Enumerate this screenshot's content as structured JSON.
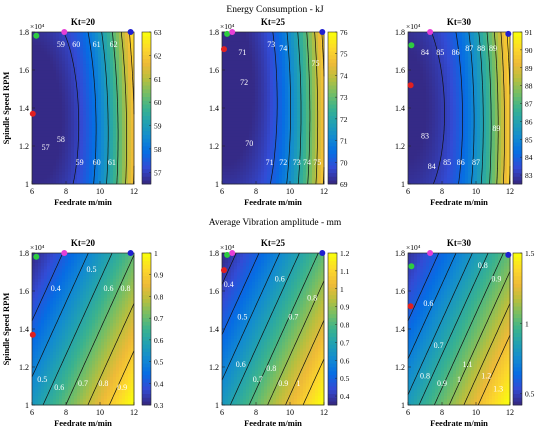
{
  "row_titles": [
    "Energy Consumption - kJ",
    "Average Vibration amplitude - mm"
  ],
  "exponent_label": "×10⁴",
  "chart_data": [
    {
      "type": "heatmap",
      "row": 0,
      "col": 0,
      "title": "Kt=20",
      "xlabel": "Feedrate m/min",
      "ylabel": "Spindle Speed RPM",
      "xlim": [
        6,
        12
      ],
      "ylim": [
        1,
        1.8
      ],
      "xticks": [
        "6",
        "8",
        "10",
        "12"
      ],
      "yticks": [
        "1",
        "1.2",
        "1.4",
        "1.6",
        "1.8"
      ],
      "colorbar": {
        "min": 56.5,
        "max": 63,
        "ticks": [
          "57",
          "58",
          "59",
          "60",
          "61",
          "62",
          "63"
        ]
      },
      "levels": [
        57,
        58,
        59,
        60,
        61,
        62
      ],
      "field": {
        "kind": "energy",
        "a": 56.2,
        "b": 7.0,
        "xc": 6.6,
        "yc": 1.38,
        "kx": 4.0,
        "ky": 1.6,
        "sk": 0.5,
        "vmin": 56.5,
        "vmax": 63
      },
      "contour_labels": [
        {
          "text": "59",
          "x": 7.7,
          "y": 1.72
        },
        {
          "text": "60",
          "x": 8.6,
          "y": 1.72
        },
        {
          "text": "61",
          "x": 9.8,
          "y": 1.72
        },
        {
          "text": "62",
          "x": 10.8,
          "y": 1.72
        },
        {
          "text": "57",
          "x": 6.8,
          "y": 1.18
        },
        {
          "text": "58",
          "x": 7.7,
          "y": 1.22
        },
        {
          "text": "59",
          "x": 8.8,
          "y": 1.1
        },
        {
          "text": "60",
          "x": 9.8,
          "y": 1.1
        },
        {
          "text": "61",
          "x": 10.7,
          "y": 1.1
        }
      ],
      "markers": [
        {
          "color": "#2ecc40",
          "x": 6.25,
          "y": 1.78
        },
        {
          "color": "#e63fd6",
          "x": 7.9,
          "y": 1.8
        },
        {
          "color": "#1f1fd0",
          "x": 11.8,
          "y": 1.8
        },
        {
          "color": "#e02020",
          "x": 6.05,
          "y": 1.37
        }
      ]
    },
    {
      "type": "heatmap",
      "row": 0,
      "col": 1,
      "title": "Kt=25",
      "xlabel": "Feedrate m/min",
      "ylabel": "",
      "xlim": [
        6,
        12
      ],
      "ylim": [
        1,
        1.8
      ],
      "xticks": [
        "6",
        "8",
        "10",
        "12"
      ],
      "yticks": [
        "1",
        "1.2",
        "1.4",
        "1.6",
        "1.8"
      ],
      "colorbar": {
        "min": 69,
        "max": 76,
        "ticks": [
          "69",
          "70",
          "71",
          "72",
          "73",
          "74",
          "75",
          "76"
        ]
      },
      "levels": [
        70,
        71,
        72,
        73,
        74,
        75
      ],
      "field": {
        "kind": "energy",
        "a": 68.6,
        "b": 7.5,
        "xc": 6.4,
        "yc": 1.55,
        "kx": 3.9,
        "ky": 1.4,
        "sk": 0.7,
        "vmin": 69,
        "vmax": 76
      },
      "contour_labels": [
        {
          "text": "71",
          "x": 7.2,
          "y": 1.68
        },
        {
          "text": "73",
          "x": 8.9,
          "y": 1.72
        },
        {
          "text": "74",
          "x": 9.6,
          "y": 1.7
        },
        {
          "text": "72",
          "x": 7.3,
          "y": 1.52
        },
        {
          "text": "70",
          "x": 7.6,
          "y": 1.2
        },
        {
          "text": "71",
          "x": 8.8,
          "y": 1.1
        },
        {
          "text": "72",
          "x": 9.6,
          "y": 1.1
        },
        {
          "text": "73",
          "x": 10.4,
          "y": 1.1
        },
        {
          "text": "74",
          "x": 11.0,
          "y": 1.1
        },
        {
          "text": "75",
          "x": 11.6,
          "y": 1.1
        },
        {
          "text": "75",
          "x": 11.5,
          "y": 1.62
        }
      ],
      "markers": [
        {
          "color": "#2ecc40",
          "x": 6.3,
          "y": 1.79
        },
        {
          "color": "#e63fd6",
          "x": 6.6,
          "y": 1.8
        },
        {
          "color": "#1f1fd0",
          "x": 11.9,
          "y": 1.8
        },
        {
          "color": "#e02020",
          "x": 6.12,
          "y": 1.71
        }
      ]
    },
    {
      "type": "heatmap",
      "row": 0,
      "col": 2,
      "title": "Kt=30",
      "xlabel": "Feedrate m/min",
      "ylabel": "",
      "xlim": [
        6,
        12
      ],
      "ylim": [
        1,
        1.8
      ],
      "xticks": [
        "6",
        "8",
        "10",
        "12"
      ],
      "yticks": [
        "1",
        "1.2",
        "1.4",
        "1.6",
        "1.8"
      ],
      "colorbar": {
        "min": 82.5,
        "max": 91,
        "ticks": [
          "83",
          "84",
          "85",
          "86",
          "87",
          "88",
          "89",
          "90",
          "91"
        ]
      },
      "levels": [
        83,
        84,
        85,
        86,
        87,
        88,
        89,
        90
      ],
      "field": {
        "kind": "energy",
        "a": 82.3,
        "b": 8.7,
        "xc": 6.3,
        "yc": 1.42,
        "kx": 4.0,
        "ky": 1.4,
        "sk": 0.5,
        "vmin": 82.5,
        "vmax": 91
      },
      "contour_labels": [
        {
          "text": "84",
          "x": 7.0,
          "y": 1.68
        },
        {
          "text": "85",
          "x": 7.9,
          "y": 1.68
        },
        {
          "text": "86",
          "x": 8.8,
          "y": 1.68
        },
        {
          "text": "87",
          "x": 9.6,
          "y": 1.7
        },
        {
          "text": "88",
          "x": 10.3,
          "y": 1.7
        },
        {
          "text": "89",
          "x": 11.0,
          "y": 1.7
        },
        {
          "text": "83",
          "x": 7.0,
          "y": 1.24
        },
        {
          "text": "84",
          "x": 7.4,
          "y": 1.08
        },
        {
          "text": "85",
          "x": 8.3,
          "y": 1.1
        },
        {
          "text": "86",
          "x": 9.1,
          "y": 1.1
        },
        {
          "text": "87",
          "x": 10.0,
          "y": 1.1
        },
        {
          "text": "89",
          "x": 11.2,
          "y": 1.28
        }
      ],
      "markers": [
        {
          "color": "#2ecc40",
          "x": 6.2,
          "y": 1.73
        },
        {
          "color": "#e63fd6",
          "x": 7.3,
          "y": 1.8
        },
        {
          "color": "#1f1fd0",
          "x": 11.9,
          "y": 1.79
        },
        {
          "color": "#e02020",
          "x": 6.15,
          "y": 1.52
        }
      ]
    },
    {
      "type": "heatmap",
      "row": 1,
      "col": 0,
      "title": "Kt=20",
      "xlabel": "Feedrate m/min",
      "ylabel": "Spindle Speed RPM",
      "xlim": [
        6,
        12
      ],
      "ylim": [
        1,
        1.8
      ],
      "xticks": [
        "6",
        "8",
        "10",
        "12"
      ],
      "yticks": [
        "1",
        "1.2",
        "1.4",
        "1.6",
        "1.8"
      ],
      "colorbar": {
        "min": 0.3,
        "max": 1.0,
        "ticks": [
          "0.3",
          "0.4",
          "0.5",
          "0.6",
          "0.7",
          "0.8",
          "0.9",
          "1"
        ]
      },
      "levels": [
        0.4,
        0.5,
        0.6,
        0.7,
        0.8,
        0.9
      ],
      "field": {
        "kind": "vib",
        "base": 0.3,
        "amp": 0.7,
        "vmin": 0.3,
        "vmax": 1.0
      },
      "contour_labels": [
        {
          "text": "0.4",
          "x": 7.4,
          "y": 1.6
        },
        {
          "text": "0.5",
          "x": 9.5,
          "y": 1.7
        },
        {
          "text": "0.6",
          "x": 10.5,
          "y": 1.6
        },
        {
          "text": "0.8",
          "x": 11.5,
          "y": 1.6
        },
        {
          "text": "0.5",
          "x": 6.6,
          "y": 1.12
        },
        {
          "text": "0.6",
          "x": 7.6,
          "y": 1.08
        },
        {
          "text": "0.7",
          "x": 9.0,
          "y": 1.1
        },
        {
          "text": "0.8",
          "x": 10.2,
          "y": 1.1
        },
        {
          "text": "0.9",
          "x": 11.3,
          "y": 1.08
        }
      ],
      "markers": [
        {
          "color": "#2ecc40",
          "x": 6.25,
          "y": 1.78
        },
        {
          "color": "#e63fd6",
          "x": 7.9,
          "y": 1.8
        },
        {
          "color": "#1f1fd0",
          "x": 11.8,
          "y": 1.8
        },
        {
          "color": "#e02020",
          "x": 6.05,
          "y": 1.37
        }
      ]
    },
    {
      "type": "heatmap",
      "row": 1,
      "col": 1,
      "title": "Kt=25",
      "xlabel": "Feedrate m/min",
      "ylabel": "",
      "xlim": [
        6,
        12
      ],
      "ylim": [
        1,
        1.8
      ],
      "xticks": [
        "6",
        "8",
        "10",
        "12"
      ],
      "yticks": [
        "1",
        "1.2",
        "1.4",
        "1.6",
        "1.8"
      ],
      "colorbar": {
        "min": 0.35,
        "max": 1.2,
        "ticks": [
          "0.4",
          "0.5",
          "0.6",
          "0.7",
          "0.8",
          "0.9",
          "1",
          "1.1",
          "1.2"
        ]
      },
      "levels": [
        0.4,
        0.5,
        0.6,
        0.7,
        0.8,
        0.9,
        1.0,
        1.1
      ],
      "field": {
        "kind": "vib",
        "base": 0.35,
        "amp": 0.85,
        "vmin": 0.35,
        "vmax": 1.2
      },
      "contour_labels": [
        {
          "text": "0.4",
          "x": 6.4,
          "y": 1.62
        },
        {
          "text": "0.6",
          "x": 9.4,
          "y": 1.65
        },
        {
          "text": "0.5",
          "x": 7.2,
          "y": 1.45
        },
        {
          "text": "0.7",
          "x": 10.2,
          "y": 1.45
        },
        {
          "text": "0.8",
          "x": 11.3,
          "y": 1.55
        },
        {
          "text": "0.6",
          "x": 7.1,
          "y": 1.2
        },
        {
          "text": "0.7",
          "x": 8.1,
          "y": 1.12
        },
        {
          "text": "0.8",
          "x": 8.9,
          "y": 1.18
        },
        {
          "text": "0.9",
          "x": 9.6,
          "y": 1.1
        },
        {
          "text": "1",
          "x": 10.5,
          "y": 1.1
        }
      ],
      "markers": [
        {
          "color": "#2ecc40",
          "x": 6.3,
          "y": 1.79
        },
        {
          "color": "#e63fd6",
          "x": 6.6,
          "y": 1.8
        },
        {
          "color": "#1f1fd0",
          "x": 11.9,
          "y": 1.8
        },
        {
          "color": "#e02020",
          "x": 6.12,
          "y": 1.71
        }
      ]
    },
    {
      "type": "heatmap",
      "row": 1,
      "col": 2,
      "title": "Kt=30",
      "xlabel": "Feedrate m/min",
      "ylabel": "",
      "xlim": [
        6,
        12
      ],
      "ylim": [
        1,
        1.8
      ],
      "xticks": [
        "6",
        "8",
        "10",
        "12"
      ],
      "yticks": [
        "1",
        "1.2",
        "1.4",
        "1.6",
        "1.8"
      ],
      "colorbar": {
        "min": 0.42,
        "max": 1.5,
        "ticks": [
          "0.5",
          "1",
          "1.5"
        ]
      },
      "levels": [
        0.6,
        0.7,
        0.8,
        0.9,
        1.0,
        1.1,
        1.2,
        1.3
      ],
      "field": {
        "kind": "vib",
        "base": 0.45,
        "amp": 1.05,
        "vmin": 0.42,
        "vmax": 1.5
      },
      "contour_labels": [
        {
          "text": "0.8",
          "x": 10.4,
          "y": 1.72
        },
        {
          "text": "0.9",
          "x": 11.2,
          "y": 1.65
        },
        {
          "text": "0.6",
          "x": 7.2,
          "y": 1.52
        },
        {
          "text": "0.7",
          "x": 7.8,
          "y": 1.3
        },
        {
          "text": "0.8",
          "x": 7.0,
          "y": 1.14
        },
        {
          "text": "0.9",
          "x": 8.0,
          "y": 1.1
        },
        {
          "text": "1",
          "x": 9.0,
          "y": 1.12
        },
        {
          "text": "1.1",
          "x": 9.5,
          "y": 1.2
        },
        {
          "text": "1.2",
          "x": 10.6,
          "y": 1.14
        },
        {
          "text": "1.3",
          "x": 11.3,
          "y": 1.07
        }
      ],
      "markers": [
        {
          "color": "#2ecc40",
          "x": 6.2,
          "y": 1.73
        },
        {
          "color": "#e63fd6",
          "x": 7.3,
          "y": 1.8
        },
        {
          "color": "#1f1fd0",
          "x": 11.9,
          "y": 1.79
        },
        {
          "color": "#e02020",
          "x": 6.15,
          "y": 1.52
        }
      ]
    }
  ]
}
